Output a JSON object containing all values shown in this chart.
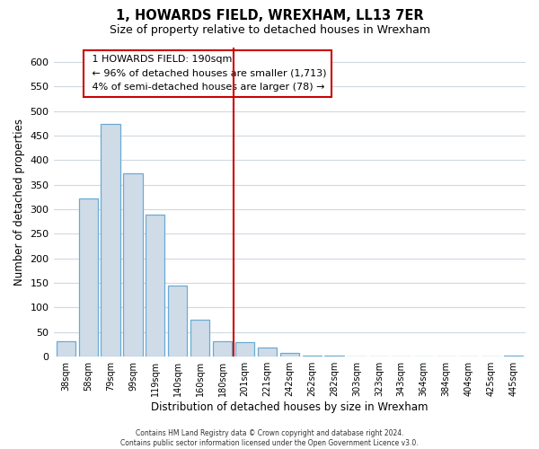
{
  "title": "1, HOWARDS FIELD, WREXHAM, LL13 7ER",
  "subtitle": "Size of property relative to detached houses in Wrexham",
  "xlabel": "Distribution of detached houses by size in Wrexham",
  "ylabel": "Number of detached properties",
  "bar_labels": [
    "38sqm",
    "58sqm",
    "79sqm",
    "99sqm",
    "119sqm",
    "140sqm",
    "160sqm",
    "180sqm",
    "201sqm",
    "221sqm",
    "242sqm",
    "262sqm",
    "282sqm",
    "303sqm",
    "323sqm",
    "343sqm",
    "364sqm",
    "384sqm",
    "404sqm",
    "425sqm",
    "445sqm"
  ],
  "bar_heights": [
    32,
    322,
    473,
    373,
    290,
    145,
    75,
    32,
    30,
    18,
    8,
    3,
    2,
    1,
    0,
    0,
    0,
    0,
    0,
    0,
    2
  ],
  "bar_color": "#cfdce8",
  "bar_edge_color": "#6aabd2",
  "ylim": [
    0,
    630
  ],
  "yticks": [
    0,
    50,
    100,
    150,
    200,
    250,
    300,
    350,
    400,
    450,
    500,
    550,
    600
  ],
  "vline_x": 8.0,
  "vline_color": "#cc0000",
  "annotation_title": "1 HOWARDS FIELD: 190sqm",
  "annotation_line1": "← 96% of detached houses are smaller (1,713)",
  "annotation_line2": "4% of semi-detached houses are larger (78) →",
  "annotation_box_edge_color": "#cc0000",
  "annotation_box_face_color": "#ffffff",
  "footer_line1": "Contains HM Land Registry data © Crown copyright and database right 2024.",
  "footer_line2": "Contains public sector information licensed under the Open Government Licence v3.0.",
  "bg_color": "#ffffff",
  "grid_color": "#d0d8e0",
  "title_fontsize": 10.5,
  "subtitle_fontsize": 9
}
